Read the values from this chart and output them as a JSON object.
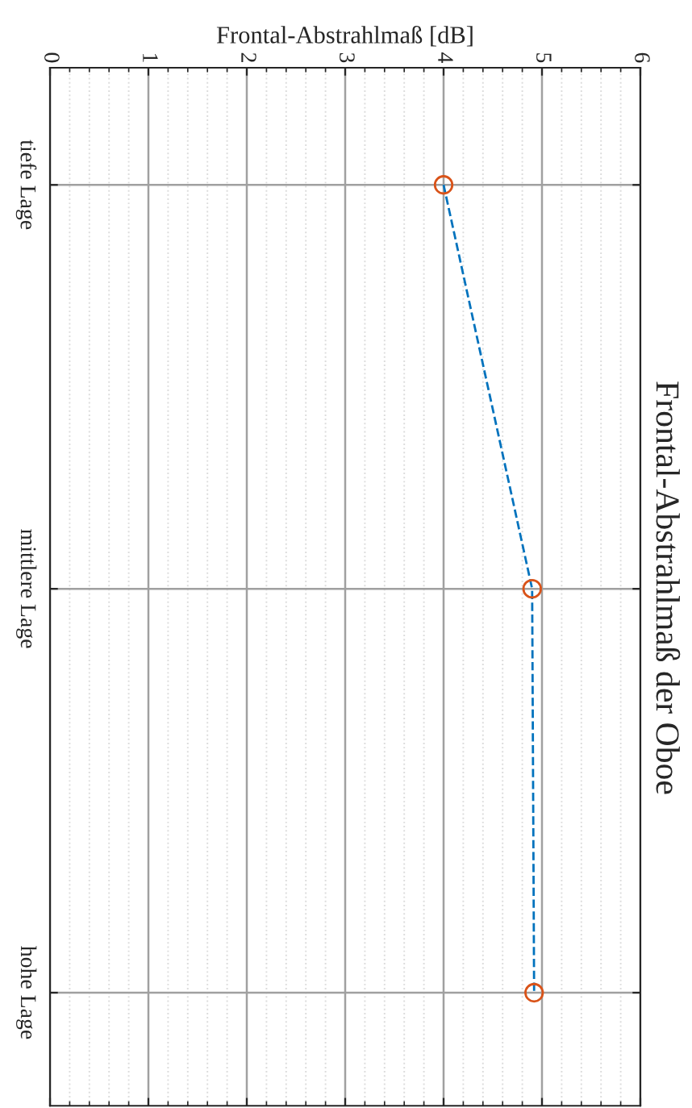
{
  "chart_data": {
    "type": "line",
    "orientation": "horizontal",
    "title": "Frontal-Abstrahlmaß der Oboe",
    "xlabel": "Frontal-Abstrahlmaß [dB]",
    "categories": [
      "tiefe Lage",
      "mittlere Lage",
      "hohe Lage"
    ],
    "series": [
      {
        "color": "#0072bd",
        "line_style": "dashed",
        "marker": "none",
        "values": [
          4.0,
          4.9,
          4.92
        ]
      },
      {
        "type": "scatter",
        "color": "#d95319",
        "marker": "circle",
        "values": [
          4.0,
          4.9,
          4.92
        ]
      }
    ],
    "xlim": [
      0,
      6
    ],
    "xticks": [
      0,
      1,
      2,
      3,
      4,
      5,
      6
    ],
    "grid": true
  }
}
